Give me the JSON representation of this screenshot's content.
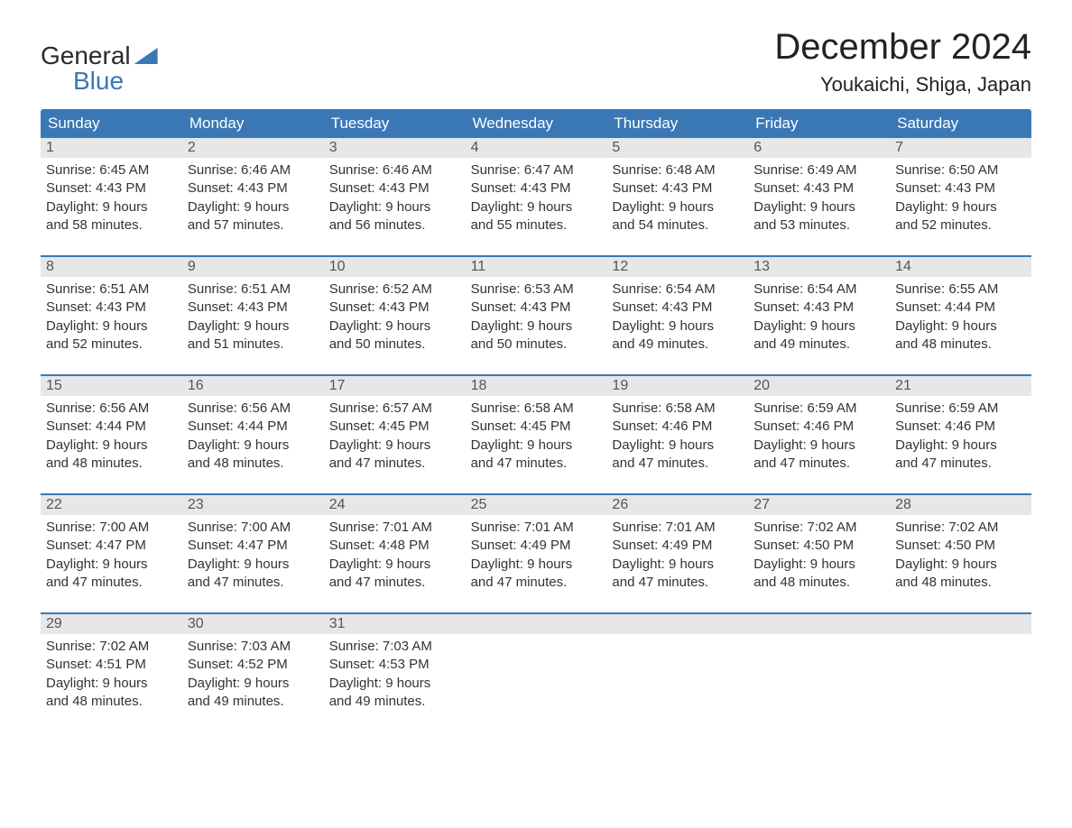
{
  "brand": {
    "line1": "General",
    "line2": "Blue"
  },
  "title": "December 2024",
  "location": "Youkaichi, Shiga, Japan",
  "colors": {
    "header_bg": "#3a78b5",
    "header_text": "#ffffff",
    "daynum_bg": "#e7e7e7",
    "body_text": "#333333",
    "week_border": "#3a78b5",
    "page_bg": "#ffffff"
  },
  "day_names": [
    "Sunday",
    "Monday",
    "Tuesday",
    "Wednesday",
    "Thursday",
    "Friday",
    "Saturday"
  ],
  "weeks": [
    [
      {
        "n": "1",
        "sunrise": "6:45 AM",
        "sunset": "4:43 PM",
        "dl1": "Daylight: 9 hours",
        "dl2": "and 58 minutes."
      },
      {
        "n": "2",
        "sunrise": "6:46 AM",
        "sunset": "4:43 PM",
        "dl1": "Daylight: 9 hours",
        "dl2": "and 57 minutes."
      },
      {
        "n": "3",
        "sunrise": "6:46 AM",
        "sunset": "4:43 PM",
        "dl1": "Daylight: 9 hours",
        "dl2": "and 56 minutes."
      },
      {
        "n": "4",
        "sunrise": "6:47 AM",
        "sunset": "4:43 PM",
        "dl1": "Daylight: 9 hours",
        "dl2": "and 55 minutes."
      },
      {
        "n": "5",
        "sunrise": "6:48 AM",
        "sunset": "4:43 PM",
        "dl1": "Daylight: 9 hours",
        "dl2": "and 54 minutes."
      },
      {
        "n": "6",
        "sunrise": "6:49 AM",
        "sunset": "4:43 PM",
        "dl1": "Daylight: 9 hours",
        "dl2": "and 53 minutes."
      },
      {
        "n": "7",
        "sunrise": "6:50 AM",
        "sunset": "4:43 PM",
        "dl1": "Daylight: 9 hours",
        "dl2": "and 52 minutes."
      }
    ],
    [
      {
        "n": "8",
        "sunrise": "6:51 AM",
        "sunset": "4:43 PM",
        "dl1": "Daylight: 9 hours",
        "dl2": "and 52 minutes."
      },
      {
        "n": "9",
        "sunrise": "6:51 AM",
        "sunset": "4:43 PM",
        "dl1": "Daylight: 9 hours",
        "dl2": "and 51 minutes."
      },
      {
        "n": "10",
        "sunrise": "6:52 AM",
        "sunset": "4:43 PM",
        "dl1": "Daylight: 9 hours",
        "dl2": "and 50 minutes."
      },
      {
        "n": "11",
        "sunrise": "6:53 AM",
        "sunset": "4:43 PM",
        "dl1": "Daylight: 9 hours",
        "dl2": "and 50 minutes."
      },
      {
        "n": "12",
        "sunrise": "6:54 AM",
        "sunset": "4:43 PM",
        "dl1": "Daylight: 9 hours",
        "dl2": "and 49 minutes."
      },
      {
        "n": "13",
        "sunrise": "6:54 AM",
        "sunset": "4:43 PM",
        "dl1": "Daylight: 9 hours",
        "dl2": "and 49 minutes."
      },
      {
        "n": "14",
        "sunrise": "6:55 AM",
        "sunset": "4:44 PM",
        "dl1": "Daylight: 9 hours",
        "dl2": "and 48 minutes."
      }
    ],
    [
      {
        "n": "15",
        "sunrise": "6:56 AM",
        "sunset": "4:44 PM",
        "dl1": "Daylight: 9 hours",
        "dl2": "and 48 minutes."
      },
      {
        "n": "16",
        "sunrise": "6:56 AM",
        "sunset": "4:44 PM",
        "dl1": "Daylight: 9 hours",
        "dl2": "and 48 minutes."
      },
      {
        "n": "17",
        "sunrise": "6:57 AM",
        "sunset": "4:45 PM",
        "dl1": "Daylight: 9 hours",
        "dl2": "and 47 minutes."
      },
      {
        "n": "18",
        "sunrise": "6:58 AM",
        "sunset": "4:45 PM",
        "dl1": "Daylight: 9 hours",
        "dl2": "and 47 minutes."
      },
      {
        "n": "19",
        "sunrise": "6:58 AM",
        "sunset": "4:46 PM",
        "dl1": "Daylight: 9 hours",
        "dl2": "and 47 minutes."
      },
      {
        "n": "20",
        "sunrise": "6:59 AM",
        "sunset": "4:46 PM",
        "dl1": "Daylight: 9 hours",
        "dl2": "and 47 minutes."
      },
      {
        "n": "21",
        "sunrise": "6:59 AM",
        "sunset": "4:46 PM",
        "dl1": "Daylight: 9 hours",
        "dl2": "and 47 minutes."
      }
    ],
    [
      {
        "n": "22",
        "sunrise": "7:00 AM",
        "sunset": "4:47 PM",
        "dl1": "Daylight: 9 hours",
        "dl2": "and 47 minutes."
      },
      {
        "n": "23",
        "sunrise": "7:00 AM",
        "sunset": "4:47 PM",
        "dl1": "Daylight: 9 hours",
        "dl2": "and 47 minutes."
      },
      {
        "n": "24",
        "sunrise": "7:01 AM",
        "sunset": "4:48 PM",
        "dl1": "Daylight: 9 hours",
        "dl2": "and 47 minutes."
      },
      {
        "n": "25",
        "sunrise": "7:01 AM",
        "sunset": "4:49 PM",
        "dl1": "Daylight: 9 hours",
        "dl2": "and 47 minutes."
      },
      {
        "n": "26",
        "sunrise": "7:01 AM",
        "sunset": "4:49 PM",
        "dl1": "Daylight: 9 hours",
        "dl2": "and 47 minutes."
      },
      {
        "n": "27",
        "sunrise": "7:02 AM",
        "sunset": "4:50 PM",
        "dl1": "Daylight: 9 hours",
        "dl2": "and 48 minutes."
      },
      {
        "n": "28",
        "sunrise": "7:02 AM",
        "sunset": "4:50 PM",
        "dl1": "Daylight: 9 hours",
        "dl2": "and 48 minutes."
      }
    ],
    [
      {
        "n": "29",
        "sunrise": "7:02 AM",
        "sunset": "4:51 PM",
        "dl1": "Daylight: 9 hours",
        "dl2": "and 48 minutes."
      },
      {
        "n": "30",
        "sunrise": "7:03 AM",
        "sunset": "4:52 PM",
        "dl1": "Daylight: 9 hours",
        "dl2": "and 49 minutes."
      },
      {
        "n": "31",
        "sunrise": "7:03 AM",
        "sunset": "4:53 PM",
        "dl1": "Daylight: 9 hours",
        "dl2": "and 49 minutes."
      },
      null,
      null,
      null,
      null
    ]
  ]
}
